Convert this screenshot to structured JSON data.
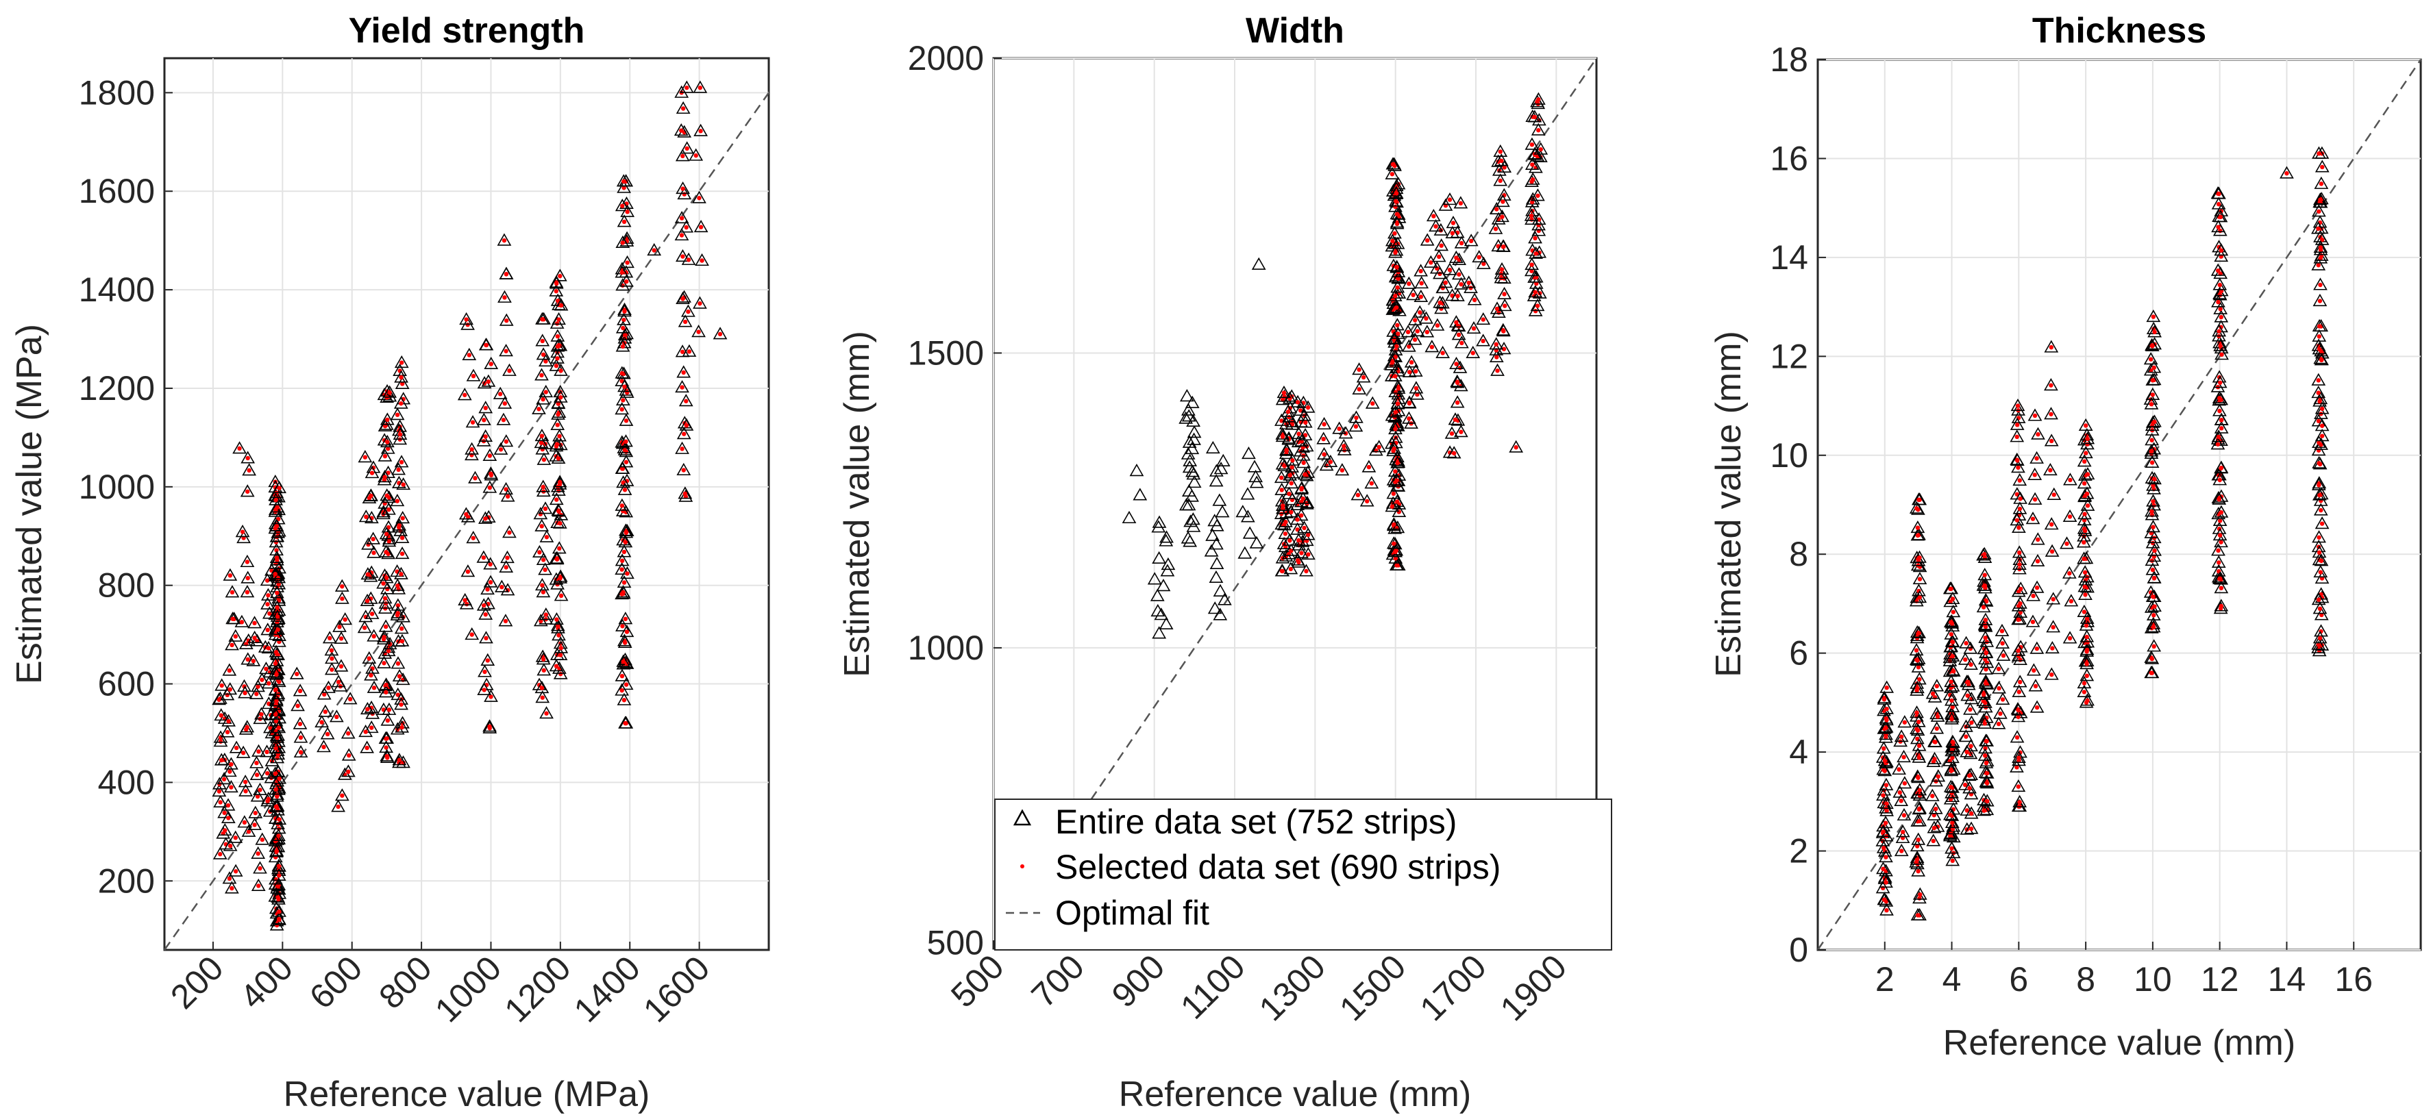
{
  "figure": {
    "description": "Estimated vs reference scatter comparison, three panels"
  },
  "colors": {
    "entire": "#000000",
    "selected": "#ff0000",
    "fit": "#555555",
    "grid": "#e3e3e3",
    "axis": "#262626"
  },
  "legend": {
    "entries": [
      {
        "label": "Entire data set (752 strips)",
        "marker": "triangle-open"
      },
      {
        "label": "Selected data set (690 strips)",
        "marker": "dot"
      },
      {
        "label": "Optimal fit",
        "marker": "dashed-line"
      }
    ]
  },
  "chart_data": [
    {
      "type": "scatter",
      "title": "Yield strength",
      "xlabel": "Reference value (MPa)",
      "ylabel": "Estimated value (MPa)",
      "xlim": [
        60,
        1800
      ],
      "ylim": [
        60,
        1870
      ],
      "xticks": [
        200,
        400,
        600,
        800,
        1000,
        1200,
        1400,
        1600
      ],
      "xtick_labels": [
        "200",
        "400",
        "600",
        "800",
        "1000",
        "1200",
        "1400",
        "1600"
      ],
      "xtick_rotation": 45,
      "yticks": [
        200,
        400,
        600,
        800,
        1000,
        1200,
        1400,
        1600,
        1800
      ],
      "ytick_labels": [
        "200",
        "400",
        "600",
        "800",
        "1000",
        "1200",
        "1400",
        "1600",
        "1800"
      ],
      "grid": true,
      "fit_line": [
        [
          60,
          60
        ],
        [
          1800,
          1800
        ]
      ],
      "clusters": [
        {
          "x": 225,
          "ymin": 250,
          "ymax": 600,
          "n": 18,
          "spread": 12
        },
        {
          "x": 255,
          "ymin": 160,
          "ymax": 820,
          "n": 22,
          "spread": 14
        },
        {
          "x": 290,
          "ymin": 300,
          "ymax": 1090,
          "n": 22,
          "spread": 14
        },
        {
          "x": 330,
          "ymin": 190,
          "ymax": 740,
          "n": 20,
          "spread": 14
        },
        {
          "x": 360,
          "ymin": 330,
          "ymax": 830,
          "n": 22,
          "spread": 10
        },
        {
          "x": 385,
          "ymin": 110,
          "ymax": 1010,
          "n": 150,
          "spread": 6
        },
        {
          "x": 445,
          "ymin": 460,
          "ymax": 620,
          "n": 6,
          "spread": 10
        },
        {
          "x": 530,
          "ymin": 470,
          "ymax": 700,
          "n": 10,
          "spread": 18
        },
        {
          "x": 575,
          "ymin": 340,
          "ymax": 800,
          "n": 16,
          "spread": 20
        },
        {
          "x": 650,
          "ymin": 470,
          "ymax": 1060,
          "n": 30,
          "spread": 14
        },
        {
          "x": 700,
          "ymin": 450,
          "ymax": 1220,
          "n": 55,
          "spread": 10
        },
        {
          "x": 740,
          "ymin": 440,
          "ymax": 1260,
          "n": 45,
          "spread": 10
        },
        {
          "x": 940,
          "ymin": 700,
          "ymax": 1350,
          "n": 16,
          "spread": 16
        },
        {
          "x": 990,
          "ymin": 510,
          "ymax": 1290,
          "n": 30,
          "spread": 12
        },
        {
          "x": 1040,
          "ymin": 720,
          "ymax": 1500,
          "n": 20,
          "spread": 14
        },
        {
          "x": 1150,
          "ymin": 540,
          "ymax": 1340,
          "n": 35,
          "spread": 12
        },
        {
          "x": 1195,
          "ymin": 620,
          "ymax": 1440,
          "n": 60,
          "spread": 8
        },
        {
          "x": 1385,
          "ymin": 520,
          "ymax": 1620,
          "n": 80,
          "spread": 8
        },
        {
          "x": 1470,
          "ymin": 1480,
          "ymax": 1480,
          "n": 1,
          "spread": 0
        },
        {
          "x": 1560,
          "ymin": 980,
          "ymax": 1810,
          "n": 30,
          "spread": 12
        },
        {
          "x": 1600,
          "ymin": 1300,
          "ymax": 1810,
          "n": 8,
          "spread": 10
        },
        {
          "x": 1660,
          "ymin": 1310,
          "ymax": 1310,
          "n": 1,
          "spread": 0
        }
      ]
    },
    {
      "type": "scatter",
      "title": "Width",
      "xlabel": "Reference value (mm)",
      "ylabel": "Estimated value (mm)",
      "xlim": [
        500,
        2000
      ],
      "ylim": [
        490,
        2000
      ],
      "xticks": [
        500,
        700,
        900,
        1100,
        1300,
        1500,
        1700,
        1900
      ],
      "xtick_labels": [
        "500",
        "700",
        "900",
        "1100",
        "1300",
        "1500",
        "1700",
        "1900"
      ],
      "xtick_rotation": 45,
      "yticks": [
        500,
        1000,
        1500,
        2000
      ],
      "ytick_labels": [
        "500",
        "1000",
        "1500",
        "2000"
      ],
      "grid": true,
      "fit_line": [
        [
          500,
          500
        ],
        [
          2000,
          2000
        ]
      ],
      "legend_location": "bottom-left",
      "clusters": [
        {
          "x": 840,
          "ymin": 1220,
          "ymax": 1300,
          "n": 3,
          "spread": 30,
          "selected": false
        },
        {
          "x": 920,
          "ymin": 1020,
          "ymax": 1220,
          "n": 14,
          "spread": 20,
          "selected": false
        },
        {
          "x": 990,
          "ymin": 1180,
          "ymax": 1430,
          "n": 25,
          "spread": 12,
          "selected": false
        },
        {
          "x": 1060,
          "ymin": 1050,
          "ymax": 1340,
          "n": 18,
          "spread": 18,
          "selected": false
        },
        {
          "x": 1140,
          "ymin": 1160,
          "ymax": 1330,
          "n": 10,
          "spread": 20,
          "selected": false
        },
        {
          "x": 1160,
          "ymin": 1650,
          "ymax": 1650,
          "n": 1,
          "spread": 0,
          "selected": false
        },
        {
          "x": 1230,
          "ymin": 1130,
          "ymax": 1440,
          "n": 50,
          "spread": 14
        },
        {
          "x": 1270,
          "ymin": 1130,
          "ymax": 1420,
          "n": 40,
          "spread": 14
        },
        {
          "x": 1350,
          "ymin": 1300,
          "ymax": 1380,
          "n": 10,
          "spread": 30
        },
        {
          "x": 1430,
          "ymin": 1240,
          "ymax": 1480,
          "n": 12,
          "spread": 30
        },
        {
          "x": 1500,
          "ymin": 1140,
          "ymax": 1820,
          "n": 120,
          "spread": 10
        },
        {
          "x": 1550,
          "ymin": 1380,
          "ymax": 1640,
          "n": 20,
          "spread": 20
        },
        {
          "x": 1600,
          "ymin": 1500,
          "ymax": 1750,
          "n": 20,
          "spread": 25
        },
        {
          "x": 1650,
          "ymin": 1330,
          "ymax": 1760,
          "n": 30,
          "spread": 15
        },
        {
          "x": 1700,
          "ymin": 1500,
          "ymax": 1690,
          "n": 10,
          "spread": 20
        },
        {
          "x": 1760,
          "ymin": 1470,
          "ymax": 1850,
          "n": 30,
          "spread": 12
        },
        {
          "x": 1800,
          "ymin": 1340,
          "ymax": 1340,
          "n": 1,
          "spread": 0
        },
        {
          "x": 1850,
          "ymin": 1570,
          "ymax": 1930,
          "n": 40,
          "spread": 12
        }
      ]
    },
    {
      "type": "scatter",
      "title": "Thickness",
      "xlabel": "Reference value (mm)",
      "ylabel": "Estimated value (mm)",
      "xlim": [
        0,
        18
      ],
      "ylim": [
        0,
        18
      ],
      "xticks": [
        2,
        4,
        6,
        8,
        10,
        12,
        14,
        16
      ],
      "xtick_labels": [
        "2",
        "4",
        "6",
        "8",
        "10",
        "12",
        "14",
        "16"
      ],
      "xtick_rotation": 0,
      "yticks": [
        0,
        2,
        4,
        6,
        8,
        10,
        12,
        14,
        16,
        18
      ],
      "ytick_labels": [
        "0",
        "2",
        "4",
        "6",
        "8",
        "10",
        "12",
        "14",
        "16",
        "18"
      ],
      "grid": true,
      "fit_line": [
        [
          0,
          0
        ],
        [
          18,
          18
        ]
      ],
      "clusters": [
        {
          "x": 2.0,
          "ymin": 0.8,
          "ymax": 5.3,
          "n": 45,
          "spread": 0.06
        },
        {
          "x": 2.5,
          "ymin": 2.0,
          "ymax": 4.6,
          "n": 12,
          "spread": 0.1
        },
        {
          "x": 3.0,
          "ymin": 0.7,
          "ymax": 9.1,
          "n": 60,
          "spread": 0.06
        },
        {
          "x": 3.5,
          "ymin": 2.2,
          "ymax": 5.4,
          "n": 18,
          "spread": 0.1
        },
        {
          "x": 4.0,
          "ymin": 1.8,
          "ymax": 7.3,
          "n": 60,
          "spread": 0.06
        },
        {
          "x": 4.5,
          "ymin": 2.4,
          "ymax": 6.2,
          "n": 25,
          "spread": 0.1
        },
        {
          "x": 5.0,
          "ymin": 2.7,
          "ymax": 8.0,
          "n": 50,
          "spread": 0.06
        },
        {
          "x": 5.5,
          "ymin": 4.5,
          "ymax": 6.5,
          "n": 8,
          "spread": 0.1
        },
        {
          "x": 6.0,
          "ymin": 2.9,
          "ymax": 11.0,
          "n": 45,
          "spread": 0.06
        },
        {
          "x": 6.5,
          "ymin": 4.9,
          "ymax": 10.8,
          "n": 15,
          "spread": 0.08
        },
        {
          "x": 7.0,
          "ymin": 5.3,
          "ymax": 12.2,
          "n": 12,
          "spread": 0.06
        },
        {
          "x": 7.5,
          "ymin": 6.3,
          "ymax": 9.5,
          "n": 6,
          "spread": 0.08
        },
        {
          "x": 8.0,
          "ymin": 5.0,
          "ymax": 10.6,
          "n": 45,
          "spread": 0.06
        },
        {
          "x": 10.0,
          "ymin": 5.6,
          "ymax": 12.8,
          "n": 55,
          "spread": 0.06
        },
        {
          "x": 12.0,
          "ymin": 6.9,
          "ymax": 15.3,
          "n": 65,
          "spread": 0.06
        },
        {
          "x": 14.0,
          "ymin": 15.7,
          "ymax": 15.7,
          "n": 1,
          "spread": 0
        },
        {
          "x": 15.0,
          "ymin": 5.9,
          "ymax": 16.1,
          "n": 70,
          "spread": 0.06
        }
      ]
    }
  ]
}
